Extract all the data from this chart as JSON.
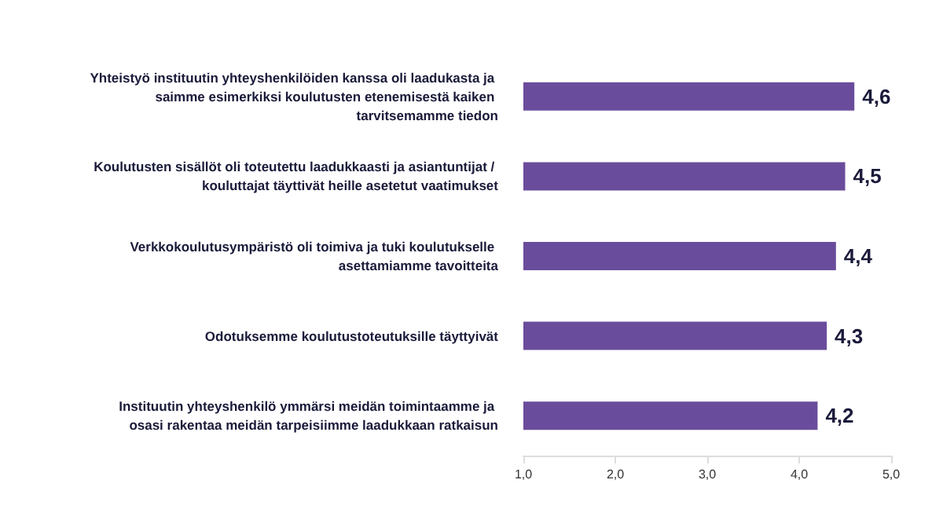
{
  "chart_data": {
    "type": "bar",
    "orientation": "horizontal",
    "categories": [
      "Yhteistyö instituutin yhteyshenkilöiden kanssa oli laadukasta ja saimme esimerkiksi koulutusten etenemisestä kaiken tarvitsemamme tiedon",
      "Koulutusten sisällöt oli toteutettu laadukkaasti ja asiantuntijat / kouluttajat täyttivät heille asetetut vaatimukset",
      "Verkkokoulutusympäristö oli toimiva ja tuki koulutukselle asettamiamme tavoitteita",
      "Odotuksemme koulutustoteutuksille täyttyivät",
      "Instituutin yhteyshenkilö ymmärsi meidän toimintaamme ja osasi rakentaa meidän tarpeisiimme laadukkaan ratkaisun"
    ],
    "values": [
      4.6,
      4.5,
      4.4,
      4.3,
      4.2
    ],
    "value_labels": [
      "4,6",
      "4,5",
      "4,4",
      "4,3",
      "4,2"
    ],
    "color": "#6a4c9c",
    "xlim": [
      1,
      5
    ],
    "xticks": [
      {
        "value": 1,
        "label": "1,0"
      },
      {
        "value": 2,
        "label": "2,0"
      },
      {
        "value": 3,
        "label": "3,0"
      },
      {
        "value": 4,
        "label": "4,0"
      },
      {
        "value": 5,
        "label": "5,0"
      }
    ],
    "grid": false
  }
}
